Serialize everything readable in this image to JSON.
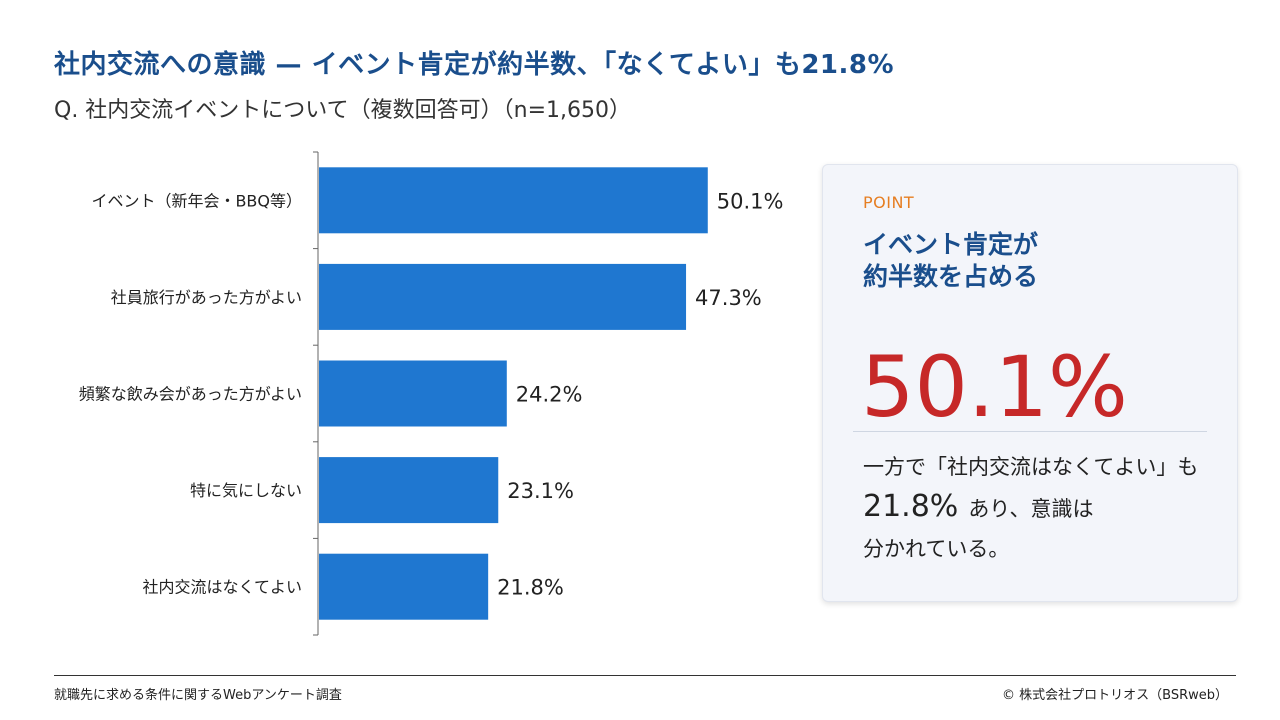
{
  "header": {
    "title": "社内交流への意識 — イベント肯定が約半数、「なくてよい」も21.8%",
    "subtitle": "Q. 社内交流イベントについて（複数回答可）（n=1,650）"
  },
  "chart_data": {
    "type": "bar",
    "orientation": "horizontal",
    "categories": [
      "イベント（新年会・BBQ等）",
      "社員旅行があった方がよい",
      "頻繁な飲み会があった方がよい",
      "特に気にしない",
      "社内交流はなくてよい"
    ],
    "values": [
      50.1,
      47.3,
      24.2,
      23.1,
      21.8
    ],
    "value_labels": [
      "50.1%",
      "47.3%",
      "24.2%",
      "23.1%",
      "21.8%"
    ],
    "unit": "%",
    "xlim": [
      0,
      100
    ],
    "bar_color": "#1f77d0",
    "grid": false
  },
  "point_card": {
    "label": "POINT",
    "heading_line1": "イベント肯定が",
    "heading_line2": "約半数を占める",
    "big_value": "50.1%",
    "body_line1": "一方で「社内交流はなくてよい」も",
    "body_number": "21.8%",
    "body_line2_rest": "あり、意識は",
    "body_line3": "分かれている。"
  },
  "footer": {
    "source": "就職先に求める条件に関するWebアンケート調査",
    "copyright": "©  株式会社プロトリオス（BSRweb）"
  },
  "colors": {
    "title": "#1a4e8c",
    "accent_orange": "#e67e22",
    "highlight_red": "#c62828",
    "bar": "#1f77d0"
  }
}
